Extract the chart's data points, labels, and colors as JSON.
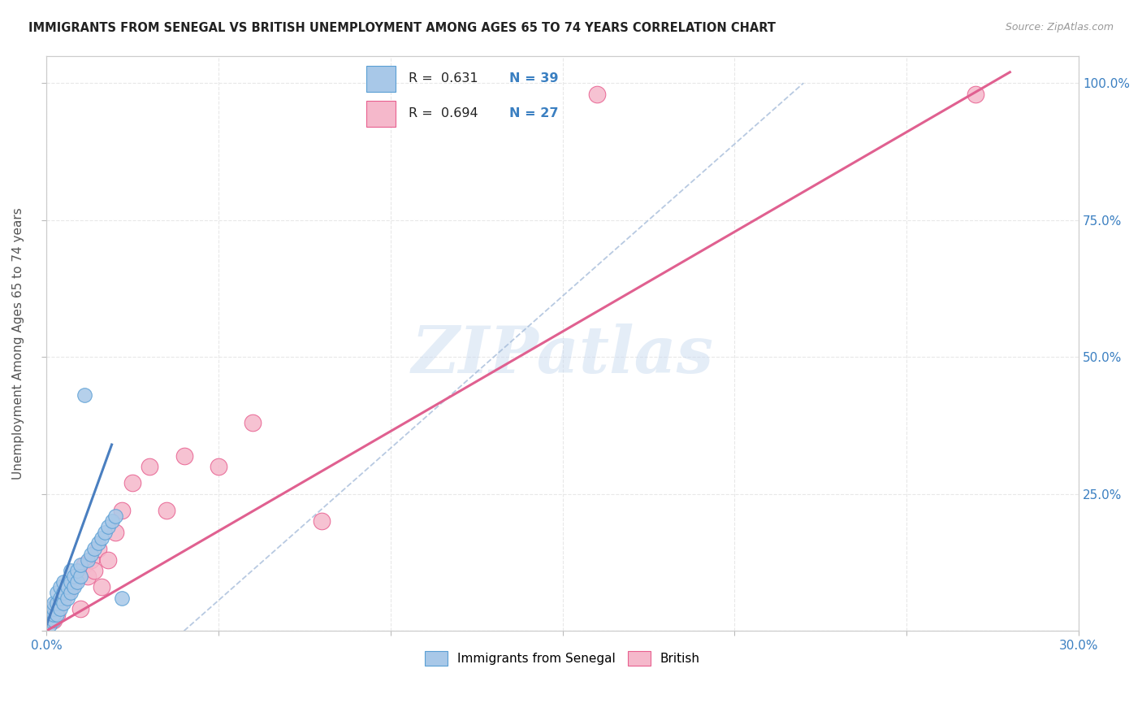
{
  "title": "IMMIGRANTS FROM SENEGAL VS BRITISH UNEMPLOYMENT AMONG AGES 65 TO 74 YEARS CORRELATION CHART",
  "source": "Source: ZipAtlas.com",
  "ylabel": "Unemployment Among Ages 65 to 74 years",
  "xlim": [
    0.0,
    0.3
  ],
  "ylim": [
    0.0,
    1.05
  ],
  "x_tick_positions": [
    0.0,
    0.05,
    0.1,
    0.15,
    0.2,
    0.25,
    0.3
  ],
  "x_tick_labels": [
    "0.0%",
    "",
    "",
    "",
    "",
    "",
    "30.0%"
  ],
  "y_tick_positions": [
    0.0,
    0.25,
    0.5,
    0.75,
    1.0
  ],
  "y_tick_labels_right": [
    "",
    "25.0%",
    "50.0%",
    "75.0%",
    "100.0%"
  ],
  "senegal_color": "#a8c8e8",
  "british_color": "#f5b8cb",
  "senegal_edge_color": "#5a9fd4",
  "british_edge_color": "#e86090",
  "senegal_line_color": "#4a7fc0",
  "british_line_color": "#e06090",
  "dash_color": "#a0b8d8",
  "watermark": "ZIPatlas",
  "background_color": "#ffffff",
  "grid_color": "#e8e8e8",
  "senegal_x": [
    0.001,
    0.001,
    0.001,
    0.001,
    0.002,
    0.002,
    0.002,
    0.002,
    0.003,
    0.003,
    0.003,
    0.004,
    0.004,
    0.004,
    0.005,
    0.005,
    0.005,
    0.006,
    0.006,
    0.007,
    0.007,
    0.007,
    0.008,
    0.008,
    0.009,
    0.009,
    0.01,
    0.01,
    0.011,
    0.012,
    0.013,
    0.014,
    0.015,
    0.016,
    0.017,
    0.018,
    0.019,
    0.02,
    0.022
  ],
  "senegal_y": [
    0.01,
    0.02,
    0.03,
    0.04,
    0.02,
    0.03,
    0.04,
    0.05,
    0.03,
    0.05,
    0.07,
    0.04,
    0.06,
    0.08,
    0.05,
    0.07,
    0.09,
    0.06,
    0.08,
    0.07,
    0.09,
    0.11,
    0.08,
    0.1,
    0.09,
    0.11,
    0.1,
    0.12,
    0.43,
    0.13,
    0.14,
    0.15,
    0.16,
    0.17,
    0.18,
    0.19,
    0.2,
    0.21,
    0.06
  ],
  "british_x": [
    0.002,
    0.003,
    0.004,
    0.005,
    0.006,
    0.007,
    0.008,
    0.009,
    0.01,
    0.011,
    0.012,
    0.013,
    0.014,
    0.015,
    0.016,
    0.018,
    0.02,
    0.022,
    0.025,
    0.03,
    0.035,
    0.04,
    0.05,
    0.06,
    0.08,
    0.16,
    0.27
  ],
  "british_y": [
    0.02,
    0.03,
    0.05,
    0.06,
    0.07,
    0.08,
    0.09,
    0.1,
    0.04,
    0.12,
    0.1,
    0.13,
    0.11,
    0.15,
    0.08,
    0.13,
    0.18,
    0.22,
    0.27,
    0.3,
    0.22,
    0.32,
    0.3,
    0.38,
    0.2,
    0.98,
    0.98
  ],
  "senegal_line_x": [
    0.0,
    0.019
  ],
  "senegal_line_y": [
    0.01,
    0.34
  ],
  "british_line_x": [
    0.0,
    0.28
  ],
  "british_line_y": [
    0.0,
    1.02
  ],
  "dash_line_x": [
    0.04,
    0.22
  ],
  "dash_line_y": [
    0.0,
    1.0
  ]
}
